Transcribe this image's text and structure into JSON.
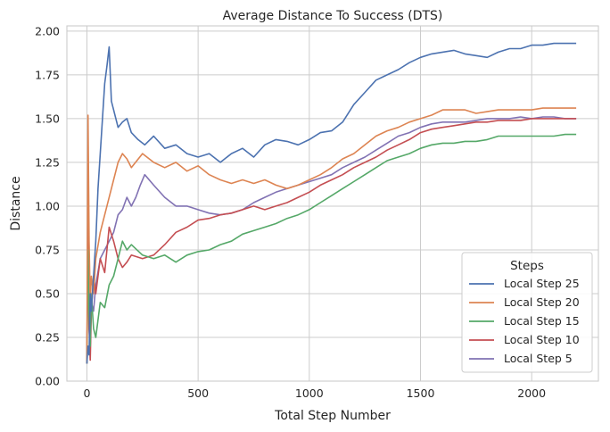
{
  "chart_data": {
    "type": "line",
    "title": "Average Distance To Success (DTS)",
    "xlabel": "Total Step Number",
    "ylabel": "Distance",
    "xlim": [
      -90,
      2300
    ],
    "ylim": [
      0,
      2.03
    ],
    "xticks": [
      0,
      500,
      1000,
      1500,
      2000
    ],
    "yticks": [
      0.0,
      0.25,
      0.5,
      0.75,
      1.0,
      1.25,
      1.5,
      1.75,
      2.0
    ],
    "xtick_labels": [
      "0",
      "500",
      "1000",
      "1500",
      "2000"
    ],
    "ytick_labels": [
      "0.00",
      "0.25",
      "0.50",
      "0.75",
      "1.00",
      "1.25",
      "1.50",
      "1.75",
      "2.00"
    ],
    "grid": true,
    "legend": {
      "title": "Steps",
      "placement": "lower-right"
    },
    "series": [
      {
        "name": "Local Step 25",
        "color": "#4c72b0",
        "x": [
          0,
          5,
          10,
          15,
          20,
          30,
          40,
          50,
          60,
          70,
          80,
          90,
          100,
          110,
          120,
          140,
          160,
          180,
          200,
          230,
          260,
          300,
          350,
          400,
          450,
          500,
          550,
          600,
          650,
          700,
          750,
          800,
          850,
          900,
          950,
          1000,
          1050,
          1100,
          1150,
          1200,
          1250,
          1300,
          1350,
          1400,
          1450,
          1500,
          1550,
          1600,
          1650,
          1700,
          1750,
          1800,
          1850,
          1900,
          1950,
          2000,
          2050,
          2100,
          2150,
          2200
        ],
        "y": [
          0.1,
          0.2,
          0.15,
          0.5,
          0.4,
          0.6,
          0.8,
          1.1,
          1.3,
          1.5,
          1.7,
          1.8,
          1.91,
          1.6,
          1.55,
          1.45,
          1.48,
          1.5,
          1.42,
          1.38,
          1.35,
          1.4,
          1.33,
          1.35,
          1.3,
          1.28,
          1.3,
          1.25,
          1.3,
          1.33,
          1.28,
          1.35,
          1.38,
          1.37,
          1.35,
          1.38,
          1.42,
          1.43,
          1.48,
          1.58,
          1.65,
          1.72,
          1.75,
          1.78,
          1.82,
          1.85,
          1.87,
          1.88,
          1.89,
          1.87,
          1.86,
          1.85,
          1.88,
          1.9,
          1.9,
          1.92,
          1.92,
          1.93,
          1.93,
          1.93
        ]
      },
      {
        "name": "Local Step 20",
        "color": "#dd8452",
        "x": [
          0,
          5,
          10,
          15,
          20,
          30,
          40,
          60,
          80,
          100,
          120,
          140,
          160,
          180,
          200,
          250,
          300,
          350,
          400,
          450,
          500,
          550,
          600,
          650,
          700,
          750,
          800,
          850,
          900,
          950,
          1000,
          1050,
          1100,
          1150,
          1200,
          1250,
          1300,
          1350,
          1400,
          1450,
          1500,
          1550,
          1600,
          1650,
          1700,
          1750,
          1800,
          1850,
          1900,
          1950,
          2000,
          2050,
          2100,
          2150,
          2200
        ],
        "y": [
          0.1,
          1.52,
          0.8,
          0.45,
          0.6,
          0.5,
          0.7,
          0.85,
          0.95,
          1.05,
          1.15,
          1.25,
          1.3,
          1.27,
          1.22,
          1.3,
          1.25,
          1.22,
          1.25,
          1.2,
          1.23,
          1.18,
          1.15,
          1.13,
          1.15,
          1.13,
          1.15,
          1.12,
          1.1,
          1.12,
          1.15,
          1.18,
          1.22,
          1.27,
          1.3,
          1.35,
          1.4,
          1.43,
          1.45,
          1.48,
          1.5,
          1.52,
          1.55,
          1.55,
          1.55,
          1.53,
          1.54,
          1.55,
          1.55,
          1.55,
          1.55,
          1.56,
          1.56,
          1.56,
          1.56
        ]
      },
      {
        "name": "Local Step 15",
        "color": "#55a868",
        "x": [
          0,
          5,
          10,
          15,
          20,
          30,
          40,
          60,
          80,
          100,
          120,
          140,
          160,
          180,
          200,
          250,
          300,
          350,
          400,
          450,
          500,
          550,
          600,
          650,
          700,
          750,
          800,
          850,
          900,
          950,
          1000,
          1050,
          1100,
          1150,
          1200,
          1250,
          1300,
          1350,
          1400,
          1450,
          1500,
          1550,
          1600,
          1650,
          1700,
          1750,
          1800,
          1850,
          1900,
          1950,
          2000,
          2050,
          2100,
          2150,
          2200
        ],
        "y": [
          0.1,
          0.75,
          0.4,
          0.2,
          0.5,
          0.3,
          0.25,
          0.45,
          0.42,
          0.55,
          0.6,
          0.7,
          0.8,
          0.75,
          0.78,
          0.72,
          0.7,
          0.72,
          0.68,
          0.72,
          0.74,
          0.75,
          0.78,
          0.8,
          0.84,
          0.86,
          0.88,
          0.9,
          0.93,
          0.95,
          0.98,
          1.02,
          1.06,
          1.1,
          1.14,
          1.18,
          1.22,
          1.26,
          1.28,
          1.3,
          1.33,
          1.35,
          1.36,
          1.36,
          1.37,
          1.37,
          1.38,
          1.4,
          1.4,
          1.4,
          1.4,
          1.4,
          1.4,
          1.41,
          1.41
        ]
      },
      {
        "name": "Local Step 10",
        "color": "#c44e52",
        "x": [
          0,
          5,
          10,
          15,
          20,
          30,
          40,
          60,
          80,
          100,
          120,
          140,
          160,
          180,
          200,
          250,
          300,
          350,
          400,
          450,
          500,
          550,
          600,
          650,
          700,
          750,
          800,
          850,
          900,
          950,
          1000,
          1050,
          1100,
          1150,
          1200,
          1250,
          1300,
          1350,
          1400,
          1450,
          1500,
          1550,
          1600,
          1650,
          1700,
          1750,
          1800,
          1850,
          1900,
          1950,
          2000,
          2050,
          2100,
          2150,
          2200
        ],
        "y": [
          0.1,
          0.9,
          0.3,
          0.12,
          0.4,
          0.6,
          0.5,
          0.7,
          0.62,
          0.88,
          0.8,
          0.7,
          0.65,
          0.68,
          0.72,
          0.7,
          0.72,
          0.78,
          0.85,
          0.88,
          0.92,
          0.93,
          0.95,
          0.96,
          0.98,
          1.0,
          0.98,
          1.0,
          1.02,
          1.05,
          1.08,
          1.12,
          1.15,
          1.18,
          1.22,
          1.25,
          1.28,
          1.32,
          1.35,
          1.38,
          1.42,
          1.44,
          1.45,
          1.46,
          1.47,
          1.48,
          1.48,
          1.49,
          1.49,
          1.49,
          1.5,
          1.5,
          1.5,
          1.5,
          1.5
        ]
      },
      {
        "name": "Local Step 5",
        "color": "#8172b3",
        "x": [
          0,
          5,
          10,
          15,
          20,
          30,
          40,
          60,
          80,
          100,
          120,
          140,
          160,
          180,
          200,
          220,
          240,
          260,
          300,
          350,
          400,
          450,
          500,
          550,
          600,
          650,
          700,
          750,
          800,
          850,
          900,
          950,
          1000,
          1050,
          1100,
          1150,
          1200,
          1250,
          1300,
          1350,
          1400,
          1450,
          1500,
          1550,
          1600,
          1650,
          1700,
          1750,
          1800,
          1850,
          1900,
          1950,
          2000,
          2050,
          2100,
          2150,
          2200
        ],
        "y": [
          0.1,
          0.8,
          0.3,
          0.2,
          0.45,
          0.4,
          0.55,
          0.7,
          0.75,
          0.8,
          0.85,
          0.95,
          0.98,
          1.05,
          1.0,
          1.05,
          1.12,
          1.18,
          1.12,
          1.05,
          1.0,
          1.0,
          0.98,
          0.96,
          0.95,
          0.96,
          0.98,
          1.02,
          1.05,
          1.08,
          1.1,
          1.12,
          1.14,
          1.16,
          1.18,
          1.22,
          1.25,
          1.28,
          1.32,
          1.36,
          1.4,
          1.42,
          1.45,
          1.47,
          1.48,
          1.48,
          1.48,
          1.49,
          1.5,
          1.5,
          1.5,
          1.51,
          1.5,
          1.51,
          1.51,
          1.5,
          1.5
        ]
      }
    ]
  }
}
